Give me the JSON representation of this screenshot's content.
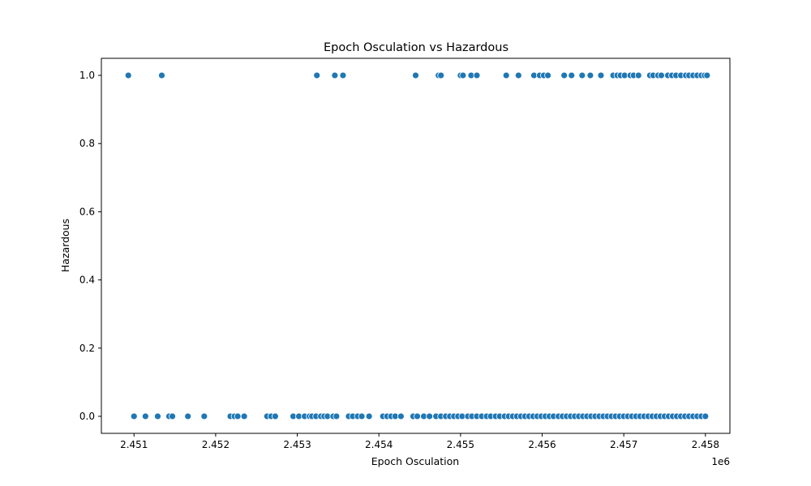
{
  "chart_data": {
    "type": "scatter",
    "title": "Epoch Osculation vs Hazardous",
    "xlabel": "Epoch Osculation",
    "ylabel": "Hazardous",
    "x_offset_label": "1e6",
    "x_scale": 1000000,
    "xlim": [
      2450600,
      2458300
    ],
    "ylim": [
      -0.05,
      1.05
    ],
    "x_ticks": [
      2451000,
      2452000,
      2453000,
      2454000,
      2455000,
      2456000,
      2457000,
      2458000
    ],
    "x_tick_labels": [
      "2.451",
      "2.452",
      "2.453",
      "2.454",
      "2.455",
      "2.456",
      "2.457",
      "2.458"
    ],
    "y_ticks": [
      0.0,
      0.2,
      0.4,
      0.6,
      0.8,
      1.0
    ],
    "y_tick_labels": [
      "0.0",
      "0.2",
      "0.4",
      "0.6",
      "0.8",
      "1.0"
    ],
    "grid": false,
    "legend": "none",
    "marker_color": "#1f77b4",
    "series": [
      {
        "x": [
          2450930,
          2451340,
          2453240,
          2453460,
          2453560,
          2454450,
          2454730,
          2454760,
          2455000,
          2455030,
          2455130,
          2455200,
          2455560,
          2455710,
          2455900,
          2455970,
          2456020,
          2456070,
          2456270,
          2456360,
          2456490,
          2456590,
          2456720,
          2456870,
          2456920,
          2456960,
          2457010,
          2457080,
          2457120,
          2457180,
          2457320,
          2457360,
          2457420,
          2457460,
          2457540,
          2457590,
          2457640,
          2457700,
          2457760,
          2457800,
          2457850,
          2457900,
          2457950,
          2457990,
          2458020
        ],
        "y": [
          1,
          1,
          1,
          1,
          1,
          1,
          1,
          1,
          1,
          1,
          1,
          1,
          1,
          1,
          1,
          1,
          1,
          1,
          1,
          1,
          1,
          1,
          1,
          1,
          1,
          1,
          1,
          1,
          1,
          1,
          1,
          1,
          1,
          1,
          1,
          1,
          1,
          1,
          1,
          1,
          1,
          1,
          1,
          1,
          1
        ]
      },
      {
        "x": [
          2451000,
          2451140,
          2451290,
          2451430,
          2451470,
          2451660,
          2451860,
          2452180,
          2452230,
          2452270,
          2452350,
          2452630,
          2452680,
          2452730,
          2452950,
          2453020,
          2453090,
          2453150,
          2453180,
          2453230,
          2453290,
          2453330,
          2453370,
          2453440,
          2453480,
          2453630,
          2453680,
          2453740,
          2453790,
          2453880,
          2454050,
          2454100,
          2454150,
          2454200,
          2454270,
          2454420,
          2454470,
          2454550,
          2454620,
          2454700,
          2454760,
          2454820,
          2454870,
          2454920,
          2454970,
          2455020,
          2455090,
          2455140,
          2455200,
          2455260,
          2455320,
          2455370,
          2455430,
          2455480,
          2455540,
          2455590,
          2455640,
          2455690,
          2455740,
          2455790,
          2455840,
          2455890,
          2455940,
          2455990,
          2456040,
          2456090,
          2456140,
          2456200,
          2456250,
          2456300,
          2456350,
          2456400,
          2456450,
          2456500,
          2456550,
          2456600,
          2456650,
          2456700,
          2456750,
          2456800,
          2456850,
          2456900,
          2456950,
          2457000,
          2457050,
          2457100,
          2457150,
          2457200,
          2457250,
          2457300,
          2457350,
          2457400,
          2457450,
          2457500,
          2457550,
          2457600,
          2457650,
          2457700,
          2457750,
          2457800,
          2457850,
          2457900,
          2457950,
          2458000
        ],
        "y": [
          0,
          0,
          0,
          0,
          0,
          0,
          0,
          0,
          0,
          0,
          0,
          0,
          0,
          0,
          0,
          0,
          0,
          0,
          0,
          0,
          0,
          0,
          0,
          0,
          0,
          0,
          0,
          0,
          0,
          0,
          0,
          0,
          0,
          0,
          0,
          0,
          0,
          0,
          0,
          0,
          0,
          0,
          0,
          0,
          0,
          0,
          0,
          0,
          0,
          0,
          0,
          0,
          0,
          0,
          0,
          0,
          0,
          0,
          0,
          0,
          0,
          0,
          0,
          0,
          0,
          0,
          0,
          0,
          0,
          0,
          0,
          0,
          0,
          0,
          0,
          0,
          0,
          0,
          0,
          0,
          0,
          0,
          0,
          0,
          0,
          0,
          0,
          0,
          0,
          0,
          0,
          0,
          0,
          0,
          0,
          0,
          0,
          0,
          0,
          0,
          0,
          0,
          0,
          0
        ]
      }
    ]
  }
}
